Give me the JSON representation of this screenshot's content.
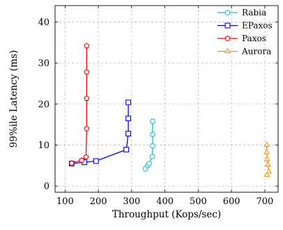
{
  "chart_data": {
    "type": "line",
    "xlabel": "Throughput (Kops/sec)",
    "ylabel": "99%ile Latency (ms)",
    "xlim": [
      70,
      740
    ],
    "ylim": [
      -1.5,
      44
    ],
    "xticks": [
      100,
      200,
      300,
      400,
      500,
      600,
      700
    ],
    "yticks": [
      0,
      10,
      20,
      30,
      40
    ],
    "grid": true,
    "legend_position": "top-right",
    "series": [
      {
        "name": "Rabia",
        "color": "#17becf",
        "marker": "circle",
        "points": [
          [
            341,
            4.2
          ],
          [
            348,
            5.0
          ],
          [
            353,
            5.5
          ],
          [
            362,
            7.2
          ],
          [
            363,
            9.8
          ],
          [
            363,
            12.6
          ],
          [
            363,
            15.8
          ]
        ]
      },
      {
        "name": "EPaxos",
        "color": "#0000ff",
        "marker": "square",
        "points": [
          [
            120,
            5.5
          ],
          [
            158,
            5.8
          ],
          [
            193,
            6.1
          ],
          [
            284,
            8.9
          ],
          [
            290,
            12.8
          ],
          [
            290,
            16.5
          ],
          [
            290,
            20.4
          ]
        ]
      },
      {
        "name": "Paxos",
        "color": "#ff0000",
        "marker": "pentagon",
        "points": [
          [
            120,
            5.6
          ],
          [
            150,
            6.3
          ],
          [
            163,
            7.1
          ],
          [
            165,
            14.0
          ],
          [
            165,
            21.4
          ],
          [
            165,
            27.8
          ],
          [
            165,
            34.2
          ]
        ]
      },
      {
        "name": "Aurora",
        "color": "#ff8c00",
        "marker": "triangle",
        "points": [
          [
            707,
            2.7
          ],
          [
            712,
            3.5
          ],
          [
            709,
            5.2
          ],
          [
            707,
            6.5
          ],
          [
            706,
            8.2
          ],
          [
            706,
            10.0
          ]
        ]
      }
    ]
  }
}
